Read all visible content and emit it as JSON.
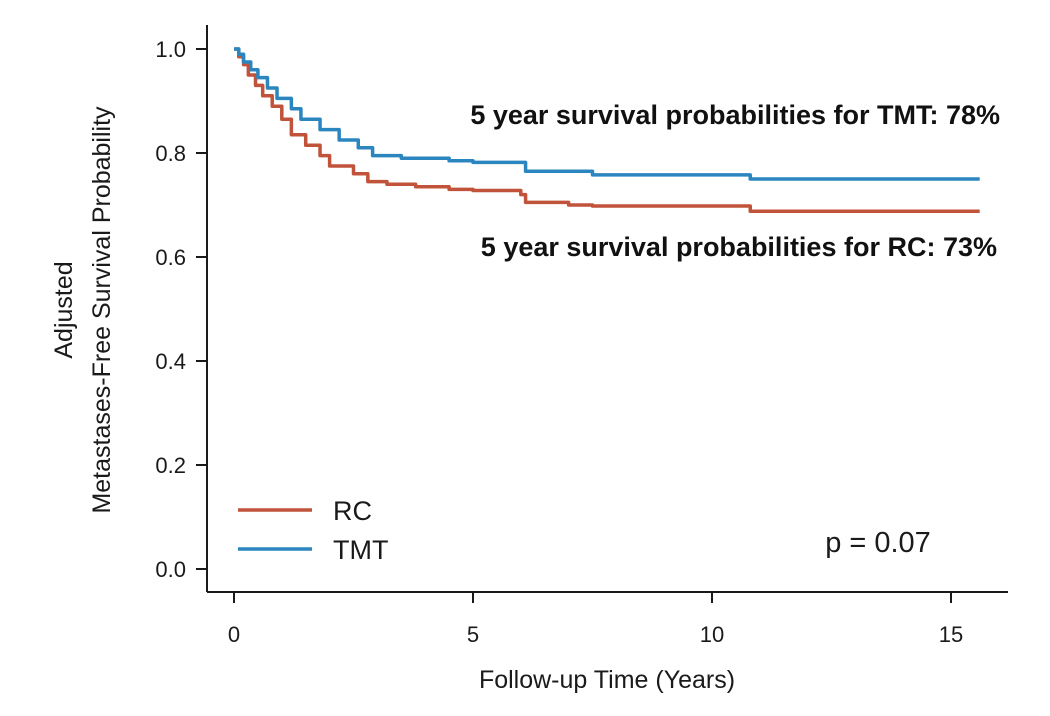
{
  "chart_data": {
    "type": "line",
    "title": "",
    "xlabel": "Follow-up Time (Years)",
    "ylabel": [
      "Adjusted",
      "Metastases-Free Survival Probability"
    ],
    "xlim": [
      0,
      16
    ],
    "ylim": [
      0,
      1
    ],
    "xticks": [
      0,
      5,
      10,
      15
    ],
    "yticks": [
      0.0,
      0.2,
      0.4,
      0.6,
      0.8,
      1.0
    ],
    "xtick_labels": [
      "0",
      "5",
      "10",
      "15"
    ],
    "ytick_labels": [
      "0.0",
      "0.2",
      "0.4",
      "0.6",
      "0.8",
      "1.0"
    ],
    "grid": false,
    "legend_position": "bottom-left",
    "series": [
      {
        "name": "RC",
        "color": "#c0533a",
        "step": true,
        "points": [
          [
            0,
            1.0
          ],
          [
            0.1,
            0.985
          ],
          [
            0.2,
            0.97
          ],
          [
            0.3,
            0.95
          ],
          [
            0.45,
            0.93
          ],
          [
            0.6,
            0.91
          ],
          [
            0.8,
            0.89
          ],
          [
            1.0,
            0.865
          ],
          [
            1.2,
            0.835
          ],
          [
            1.5,
            0.815
          ],
          [
            1.8,
            0.795
          ],
          [
            2.0,
            0.775
          ],
          [
            2.5,
            0.76
          ],
          [
            2.8,
            0.745
          ],
          [
            3.2,
            0.74
          ],
          [
            3.8,
            0.735
          ],
          [
            4.5,
            0.73
          ],
          [
            5.0,
            0.728
          ],
          [
            6.0,
            0.72
          ],
          [
            6.1,
            0.705
          ],
          [
            7.0,
            0.7
          ],
          [
            7.5,
            0.698
          ],
          [
            10.8,
            0.698
          ],
          [
            10.8,
            0.688
          ],
          [
            15.6,
            0.688
          ]
        ]
      },
      {
        "name": "TMT",
        "color": "#2b86c0",
        "step": true,
        "points": [
          [
            0,
            1.0
          ],
          [
            0.1,
            0.99
          ],
          [
            0.2,
            0.975
          ],
          [
            0.35,
            0.96
          ],
          [
            0.5,
            0.945
          ],
          [
            0.7,
            0.925
          ],
          [
            0.9,
            0.905
          ],
          [
            1.2,
            0.885
          ],
          [
            1.4,
            0.865
          ],
          [
            1.8,
            0.845
          ],
          [
            2.2,
            0.825
          ],
          [
            2.6,
            0.81
          ],
          [
            2.9,
            0.795
          ],
          [
            3.5,
            0.79
          ],
          [
            4.5,
            0.785
          ],
          [
            5.0,
            0.782
          ],
          [
            6.1,
            0.778
          ],
          [
            6.1,
            0.765
          ],
          [
            7.5,
            0.758
          ],
          [
            10.8,
            0.758
          ],
          [
            10.8,
            0.75
          ],
          [
            15.6,
            0.75
          ]
        ]
      }
    ],
    "annotations": [
      {
        "text": "5 year survival probabilities for TMT: 78%"
      },
      {
        "text": "5 year survival probabilities for RC: 73%"
      }
    ],
    "p_value_text": "p = 0.07"
  }
}
